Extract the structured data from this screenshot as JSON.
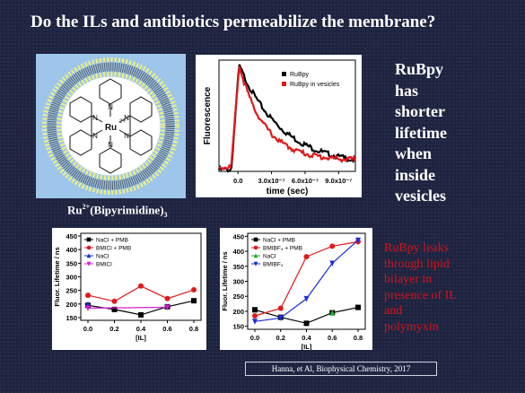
{
  "slide": {
    "title": "Do the ILs and antibiotics permeabilize the membrane?",
    "side_lines": [
      "RuBpy",
      "has",
      "shorter",
      "lifetime",
      "when",
      "inside",
      "vesicles"
    ],
    "leak_lines": [
      "RuBpy leaks",
      "through lipid",
      "bilayer in",
      "presence of IL",
      "and",
      "polymyxin"
    ],
    "caption_main": "Ru",
    "caption_sup": "2+",
    "caption_mid": "(Bipyrimidine)",
    "caption_sub": "3",
    "citation": "Hanna, et Al, Biophysical Chemistry, 2017",
    "molecule": {
      "metal_label": "Ru",
      "metal_charge": "2+",
      "n_label": "N"
    },
    "colors": {
      "background": "#1e2340",
      "leak_text": "#d0141b",
      "membrane": "#9ec6ea"
    }
  },
  "chart_data": [
    {
      "type": "line",
      "ylabel": "Fluorescence",
      "xlabel": "time (sec)",
      "x_ticks": [
        "0.0",
        "3.0x10⁻⁷",
        "6.0x10⁻⁷",
        "9.0x10⁻⁷"
      ],
      "x_tick_values": [
        0,
        3e-07,
        6e-07,
        9e-07
      ],
      "xlim": [
        -1.7e-07,
        1.05e-06
      ],
      "ylim": [
        0,
        1.05
      ],
      "legend_position": "top-right",
      "series": [
        {
          "name": "RuBpy",
          "color": "#000000",
          "lifetime": 3.9e-07,
          "baseline": 0.04
        },
        {
          "name": "RuBpy in vesicles",
          "color": "#e0191b",
          "lifetime": 2.3e-07,
          "baseline": 0.1
        }
      ]
    },
    {
      "type": "line",
      "xlabel": "[IL]",
      "ylabel": "Fluor. Lifetime / ns",
      "categories": [
        0.0,
        0.2,
        0.4,
        0.6,
        0.8
      ],
      "x_ticks": [
        "0.0",
        "0.2",
        "0.4",
        "0.6",
        "0.8"
      ],
      "y_ticks": [
        "150",
        "200",
        "250",
        "300",
        "350",
        "400",
        "450"
      ],
      "ylim": [
        140,
        460
      ],
      "legend_position": "top-left",
      "series": [
        {
          "name": "NaCl + PMB",
          "color": "#000000",
          "marker": "square",
          "x": [
            0.0,
            0.2,
            0.4,
            0.6,
            0.8
          ],
          "values": [
            195,
            180,
            160,
            190,
            212
          ]
        },
        {
          "name": "BMICl + PMB",
          "color": "#e0191b",
          "marker": "circle",
          "x": [
            0.0,
            0.2,
            0.4,
            0.6,
            0.8
          ],
          "values": [
            232,
            210,
            266,
            220,
            252
          ]
        },
        {
          "name": "NaCl",
          "color": "#1a2ed6",
          "marker": "triangle",
          "x": [
            0.0
          ],
          "values": [
            199
          ]
        },
        {
          "name": "BMICl",
          "color": "#d61fd1",
          "marker": "tri-down",
          "x": [
            0.0,
            0.6
          ],
          "values": [
            185,
            188
          ]
        }
      ]
    },
    {
      "type": "line",
      "xlabel": "[IL]",
      "ylabel": "Fluor. Lifetime / ns",
      "categories": [
        0.0,
        0.2,
        0.4,
        0.6,
        0.8
      ],
      "x_ticks": [
        "0.0",
        "0.2",
        "0.4",
        "0.6",
        "0.8"
      ],
      "y_ticks": [
        "150",
        "200",
        "250",
        "300",
        "350",
        "400",
        "450"
      ],
      "ylim": [
        140,
        460
      ],
      "legend_position": "top-left",
      "series": [
        {
          "name": "NaCl + PMB",
          "color": "#000000",
          "marker": "square",
          "x": [
            0.0,
            0.2,
            0.4,
            0.6,
            0.8
          ],
          "values": [
            205,
            180,
            160,
            195,
            213
          ]
        },
        {
          "name": "BMIBF₄ + PMB",
          "color": "#e0191b",
          "marker": "circle",
          "x": [
            0.0,
            0.2,
            0.4,
            0.6,
            0.8
          ],
          "values": [
            185,
            210,
            382,
            417,
            432
          ]
        },
        {
          "name": "NaCl",
          "color": "#1fae2a",
          "marker": "triangle",
          "x": [
            0.6
          ],
          "values": [
            195
          ]
        },
        {
          "name": "BMIBF₄",
          "color": "#1a2ed6",
          "marker": "tri-down",
          "x": [
            0.0,
            0.2,
            0.4,
            0.6,
            0.8
          ],
          "values": [
            166,
            178,
            242,
            360,
            437
          ]
        }
      ]
    }
  ]
}
